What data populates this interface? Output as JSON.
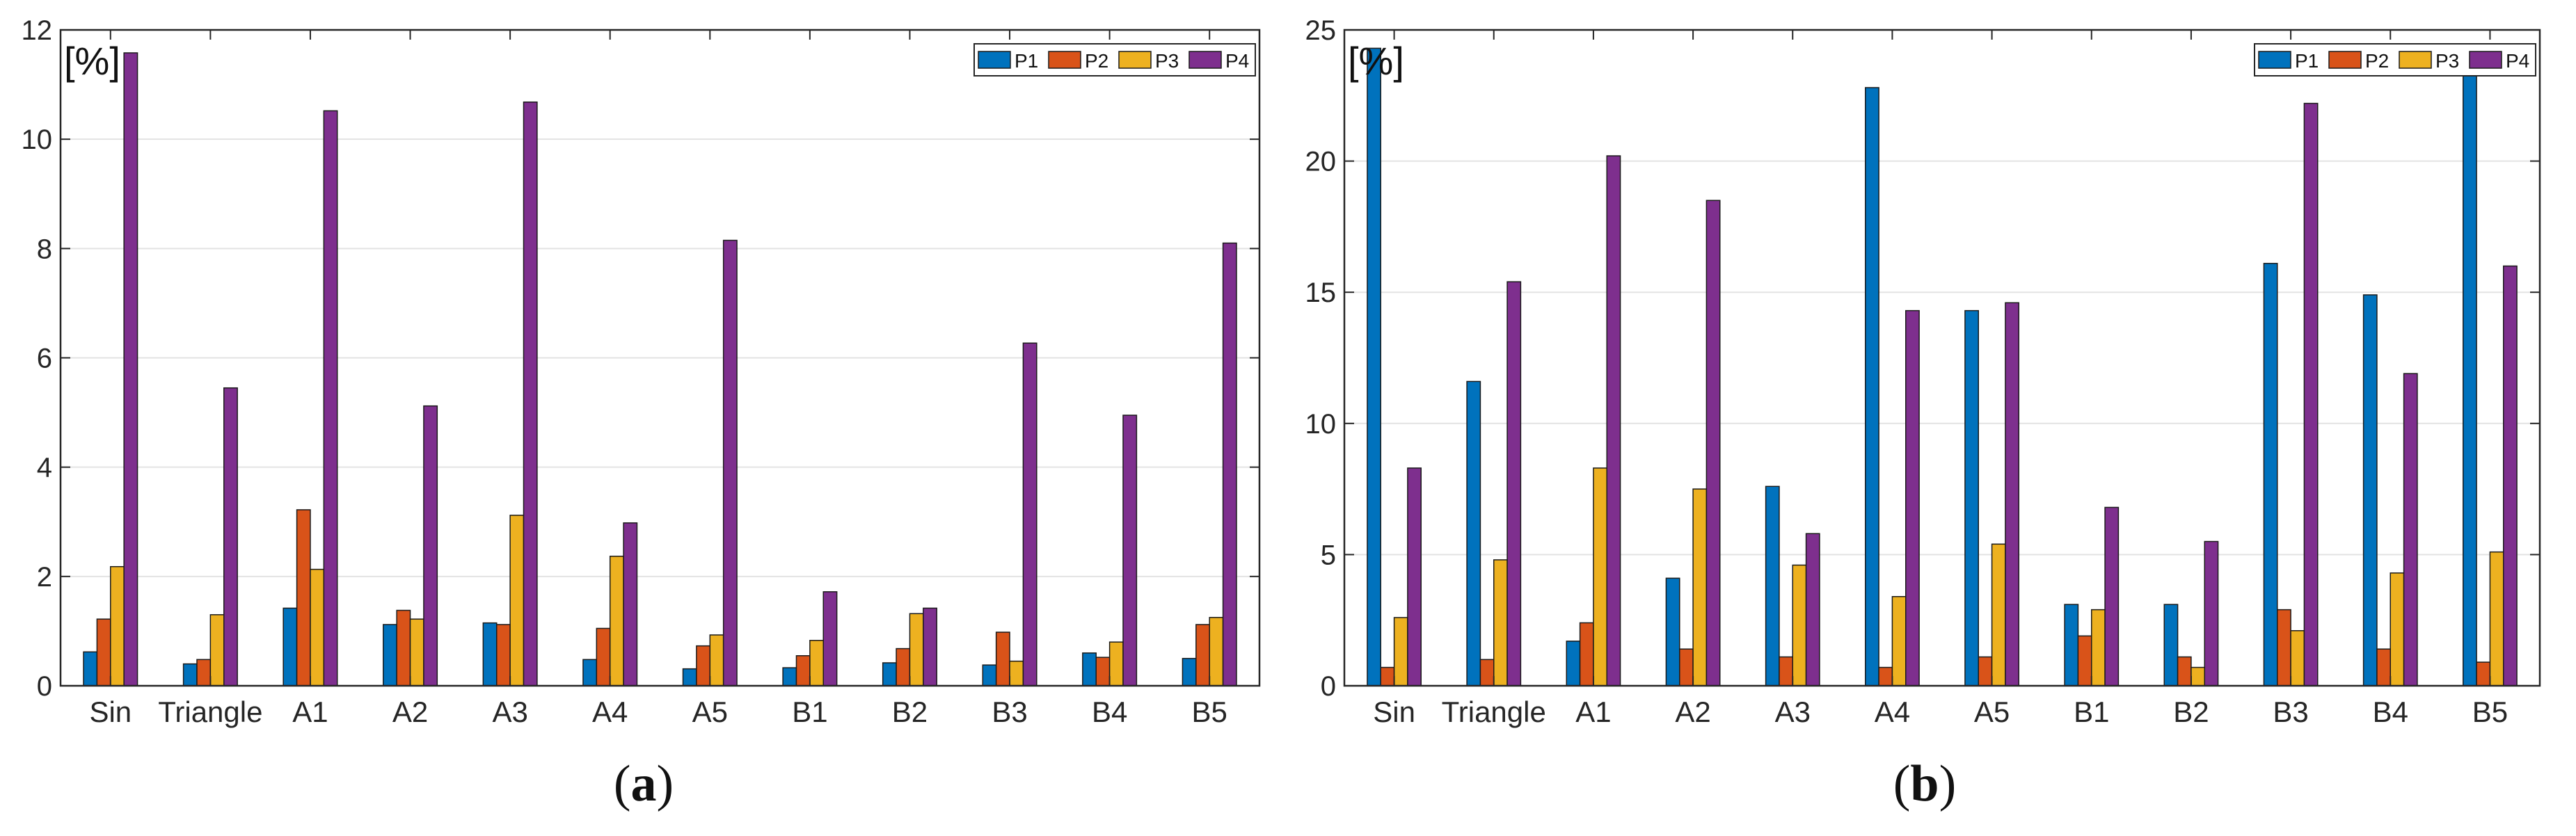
{
  "colors": {
    "P1": "#0072BD",
    "P2": "#D95319",
    "P3": "#EDB120",
    "P4": "#7E2F8E"
  },
  "captions": {
    "a_label": "a",
    "b_label": "b",
    "open": "(",
    "close": ")"
  },
  "chart_data": [
    {
      "type": "bar",
      "panel": "a",
      "unit_label": "[%]",
      "legend_position": "top-right",
      "grid": "horizontal",
      "ylim": [
        0,
        12
      ],
      "yticks": [
        0,
        2,
        4,
        6,
        8,
        10,
        12
      ],
      "categories": [
        "Sin",
        "Triangle",
        "A1",
        "A2",
        "A3",
        "A4",
        "A5",
        "B1",
        "B2",
        "B3",
        "B4",
        "B5"
      ],
      "series": [
        {
          "name": "P1",
          "values": [
            0.62,
            0.4,
            1.42,
            1.12,
            1.15,
            0.48,
            0.31,
            0.33,
            0.42,
            0.38,
            0.6,
            0.5
          ]
        },
        {
          "name": "P2",
          "values": [
            1.22,
            0.48,
            3.22,
            1.38,
            1.12,
            1.05,
            0.73,
            0.55,
            0.68,
            0.98,
            0.52,
            1.12
          ]
        },
        {
          "name": "P3",
          "values": [
            2.18,
            1.3,
            2.13,
            1.22,
            3.12,
            2.37,
            0.93,
            0.83,
            1.32,
            0.45,
            0.8,
            1.25
          ]
        },
        {
          "name": "P4",
          "values": [
            11.58,
            5.45,
            10.52,
            5.12,
            10.68,
            2.98,
            8.15,
            1.72,
            1.42,
            6.27,
            4.95,
            8.1
          ]
        }
      ]
    },
    {
      "type": "bar",
      "panel": "b",
      "unit_label": "[%]",
      "legend_position": "top-right",
      "grid": "horizontal",
      "ylim": [
        0,
        25
      ],
      "yticks": [
        0,
        5,
        10,
        15,
        20,
        25
      ],
      "categories": [
        "Sin",
        "Triangle",
        "A1",
        "A2",
        "A3",
        "A4",
        "A5",
        "B1",
        "B2",
        "B3",
        "B4",
        "B5"
      ],
      "series": [
        {
          "name": "P1",
          "values": [
            24.3,
            11.6,
            1.7,
            4.1,
            7.6,
            22.8,
            14.3,
            3.1,
            3.1,
            16.1,
            14.9,
            23.3
          ]
        },
        {
          "name": "P2",
          "values": [
            0.7,
            1.0,
            2.4,
            1.4,
            1.1,
            0.7,
            1.1,
            1.9,
            1.1,
            2.9,
            1.4,
            0.9
          ]
        },
        {
          "name": "P3",
          "values": [
            2.6,
            4.8,
            8.3,
            7.5,
            4.6,
            3.4,
            5.4,
            2.9,
            0.7,
            2.1,
            4.3,
            5.1
          ]
        },
        {
          "name": "P4",
          "values": [
            8.3,
            15.4,
            20.2,
            18.5,
            5.8,
            14.3,
            14.6,
            6.8,
            5.5,
            22.2,
            11.9,
            16.0
          ]
        }
      ]
    }
  ]
}
